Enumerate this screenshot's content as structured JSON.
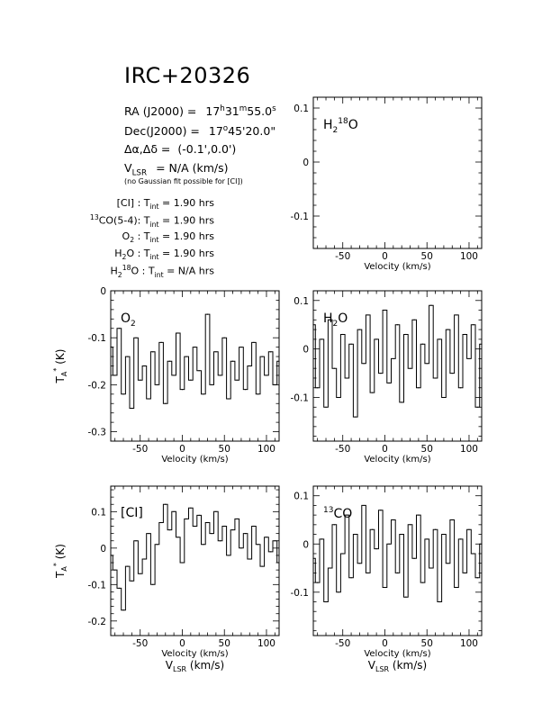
{
  "source": "IRC+20326",
  "info": {
    "ra_label": "RA (J2000) =",
    "ra_h": "17",
    "ra_m": "31",
    "ra_s": "55.0",
    "dec_label": "Dec(J2000) =",
    "dec_d": "17",
    "dec_rest": "45'20.0\"",
    "offset_label": "Δα,Δδ =",
    "offset_value": "(-0.1',0.0')",
    "vlsr_label": "V",
    "vlsr_sub": "LSR",
    "vlsr_value": "= N/A  (km/s)",
    "note": "(no Gaussian fit possible for [CI])"
  },
  "tint": [
    {
      "pre": "",
      "sup": "",
      "name": "[CI]",
      "sub": "",
      "post": "",
      "value": "= 1.90 hrs"
    },
    {
      "pre": "",
      "sup": "13",
      "name": "CO(5-4):",
      "sub": "",
      "post": "",
      "value": "= 1.90 hrs"
    },
    {
      "pre": "",
      "sup": "",
      "name": "O",
      "sub": "2",
      "post": " :",
      "value": "= 1.90 hrs"
    },
    {
      "pre": "",
      "sup": "",
      "name": "H",
      "sub": "2",
      "post": "O :",
      "value": "= 1.90 hrs"
    },
    {
      "pre": "H",
      "sup": "",
      "name": "",
      "sub": "2",
      "post": "",
      "iso": "18",
      "tail": "O :",
      "value": "= N/A hrs"
    }
  ],
  "tint_label": "T",
  "tint_sub": "int",
  "chart_data": [
    {
      "type": "line",
      "panel": "h218o",
      "label_parts": [
        "H",
        "2",
        "18",
        "O"
      ],
      "xlim": [
        -85,
        115
      ],
      "ylim": [
        -0.16,
        0.12
      ],
      "xticks": [
        -50,
        0,
        50,
        100
      ],
      "yticks": [
        -0.1,
        0,
        0.1
      ],
      "xlabel": "Velocity (km/s)",
      "ylabel": "",
      "x": [],
      "y": []
    },
    {
      "type": "line",
      "panel": "o2",
      "label_parts": [
        "O",
        "2"
      ],
      "xlim": [
        -85,
        115
      ],
      "ylim": [
        -0.32,
        0.0
      ],
      "xticks": [
        -50,
        0,
        50,
        100
      ],
      "yticks": [
        -0.3,
        -0.2,
        -0.1,
        0
      ],
      "xlabel": "Velocity (km/s)",
      "ylabel": "T",
      "x": [
        -85,
        -80,
        -75,
        -70,
        -65,
        -60,
        -55,
        -50,
        -45,
        -40,
        -35,
        -30,
        -25,
        -20,
        -15,
        -10,
        -5,
        0,
        5,
        10,
        15,
        20,
        25,
        30,
        35,
        40,
        45,
        50,
        55,
        60,
        65,
        70,
        75,
        80,
        85,
        90,
        95,
        100,
        105,
        110,
        115
      ],
      "y": [
        -0.12,
        -0.18,
        -0.08,
        -0.22,
        -0.14,
        -0.25,
        -0.1,
        -0.19,
        -0.16,
        -0.23,
        -0.13,
        -0.2,
        -0.11,
        -0.24,
        -0.15,
        -0.18,
        -0.09,
        -0.21,
        -0.14,
        -0.19,
        -0.12,
        -0.17,
        -0.22,
        -0.05,
        -0.2,
        -0.13,
        -0.18,
        -0.1,
        -0.23,
        -0.15,
        -0.19,
        -0.12,
        -0.21,
        -0.16,
        -0.11,
        -0.22,
        -0.14,
        -0.18,
        -0.13,
        -0.2,
        -0.15
      ]
    },
    {
      "type": "line",
      "panel": "h2o",
      "label_parts": [
        "H",
        "2",
        "",
        "O"
      ],
      "xlim": [
        -85,
        115
      ],
      "ylim": [
        -0.19,
        0.12
      ],
      "xticks": [
        -50,
        0,
        50,
        100
      ],
      "yticks": [
        -0.1,
        0,
        0.1
      ],
      "xlabel": "Velocity (km/s)",
      "ylabel": "",
      "x": [
        -85,
        -80,
        -75,
        -70,
        -65,
        -60,
        -55,
        -50,
        -45,
        -40,
        -35,
        -30,
        -25,
        -20,
        -15,
        -10,
        -5,
        0,
        5,
        10,
        15,
        20,
        25,
        30,
        35,
        40,
        45,
        50,
        55,
        60,
        65,
        70,
        75,
        80,
        85,
        90,
        95,
        100,
        105,
        110,
        115
      ],
      "y": [
        0.05,
        -0.08,
        0.02,
        -0.12,
        0.06,
        -0.04,
        -0.1,
        0.03,
        -0.06,
        0.01,
        -0.14,
        0.04,
        -0.03,
        0.07,
        -0.09,
        0.02,
        -0.05,
        0.08,
        -0.07,
        -0.02,
        0.05,
        -0.11,
        0.03,
        -0.04,
        0.06,
        -0.08,
        0.01,
        -0.03,
        0.09,
        -0.06,
        0.02,
        -0.1,
        0.04,
        -0.05,
        0.07,
        -0.08,
        0.03,
        -0.02,
        0.05,
        -0.12,
        0.01
      ]
    },
    {
      "type": "line",
      "panel": "ci",
      "label_parts": [
        "[CI]"
      ],
      "xlim": [
        -85,
        115
      ],
      "ylim": [
        -0.24,
        0.17
      ],
      "xticks": [
        -50,
        0,
        50,
        100
      ],
      "yticks": [
        -0.2,
        -0.1,
        0,
        0.1
      ],
      "xlabel": "Velocity (km/s)",
      "xlabel2": "V",
      "xlabel2_sub": "LSR",
      "xlabel2_tail": " (km/s)",
      "ylabel": "T",
      "x": [
        -85,
        -80,
        -75,
        -70,
        -65,
        -60,
        -55,
        -50,
        -45,
        -40,
        -35,
        -30,
        -25,
        -20,
        -15,
        -10,
        -5,
        0,
        5,
        10,
        15,
        20,
        25,
        30,
        35,
        40,
        45,
        50,
        55,
        60,
        65,
        70,
        75,
        80,
        85,
        90,
        95,
        100,
        105,
        110,
        115
      ],
      "y": [
        -0.02,
        -0.06,
        -0.11,
        -0.17,
        -0.05,
        -0.09,
        0.02,
        -0.07,
        -0.03,
        0.04,
        -0.1,
        0.01,
        0.07,
        0.12,
        0.05,
        0.1,
        0.03,
        -0.04,
        0.08,
        0.11,
        0.06,
        0.09,
        0.01,
        0.07,
        0.04,
        0.1,
        0.02,
        0.06,
        -0.02,
        0.05,
        0.08,
        0.0,
        0.04,
        -0.03,
        0.06,
        0.01,
        -0.05,
        0.03,
        -0.01,
        0.02,
        -0.04
      ]
    },
    {
      "type": "line",
      "panel": "13co",
      "label_parts": [
        "13",
        "CO"
      ],
      "xlim": [
        -85,
        115
      ],
      "ylim": [
        -0.19,
        0.12
      ],
      "xticks": [
        -50,
        0,
        50,
        100
      ],
      "yticks": [
        -0.1,
        0,
        0.1
      ],
      "xlabel": "Velocity (km/s)",
      "xlabel2": "V",
      "xlabel2_sub": "LSR",
      "xlabel2_tail": " (km/s)",
      "ylabel": "",
      "x": [
        -85,
        -80,
        -75,
        -70,
        -65,
        -60,
        -55,
        -50,
        -45,
        -40,
        -35,
        -30,
        -25,
        -20,
        -15,
        -10,
        -5,
        0,
        5,
        10,
        15,
        20,
        25,
        30,
        35,
        40,
        45,
        50,
        55,
        60,
        65,
        70,
        75,
        80,
        85,
        90,
        95,
        100,
        105,
        110,
        115
      ],
      "y": [
        -0.03,
        -0.08,
        0.01,
        -0.12,
        -0.05,
        0.04,
        -0.1,
        -0.02,
        0.06,
        -0.07,
        0.02,
        -0.04,
        0.08,
        -0.06,
        0.03,
        -0.01,
        0.07,
        -0.09,
        0.0,
        0.05,
        -0.06,
        0.02,
        -0.11,
        0.04,
        -0.03,
        0.06,
        -0.08,
        0.01,
        -0.05,
        0.03,
        -0.12,
        0.02,
        -0.04,
        0.05,
        -0.09,
        0.01,
        -0.06,
        0.03,
        -0.02,
        -0.07,
        0.0
      ]
    }
  ]
}
